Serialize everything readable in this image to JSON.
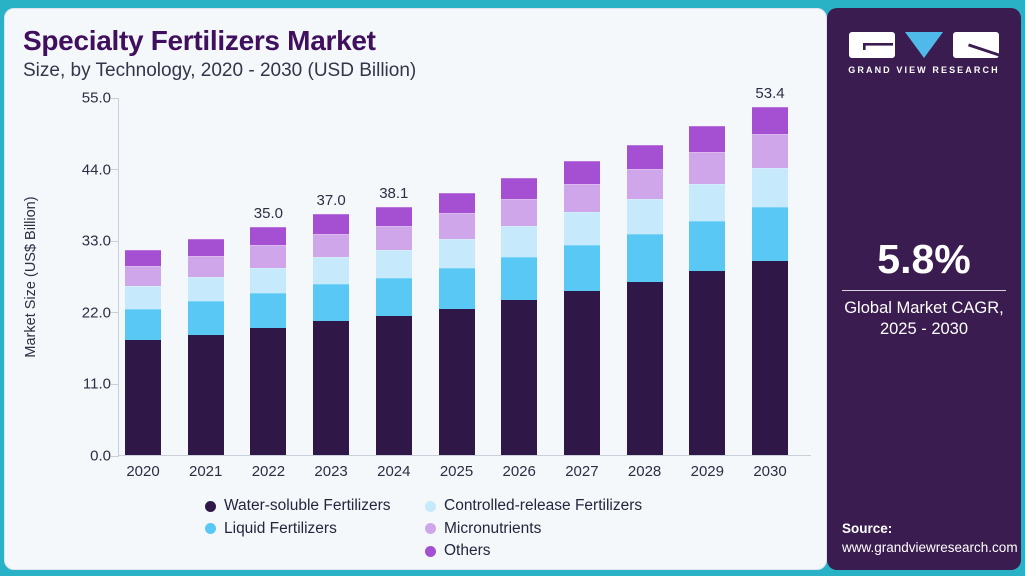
{
  "header": {
    "title": "Specialty Fertilizers Market",
    "subtitle": "Size, by Technology, 2020 - 2030 (USD Billion)"
  },
  "chart_data": {
    "type": "bar",
    "stacked": true,
    "title": "Specialty Fertilizers Market Size, by Technology, 2020 - 2030 (USD Billion)",
    "ylabel": "Market Size (US$ Billion)",
    "xlabel": "",
    "ylim": [
      0,
      55
    ],
    "ytick_labels": [
      "0.0",
      "11.0",
      "22.0",
      "33.0",
      "44.0",
      "55.0"
    ],
    "grid": "off",
    "legend_position": "bottom",
    "legend_columns": [
      [
        0,
        1
      ],
      [
        2,
        3,
        4
      ]
    ],
    "categories": [
      "2020",
      "2021",
      "2022",
      "2023",
      "2024",
      "2025",
      "2026",
      "2027",
      "2028",
      "2029",
      "2030"
    ],
    "totals": [
      31.5,
      33.2,
      35.0,
      37.0,
      38.1,
      40.3,
      42.6,
      45.1,
      47.7,
      50.5,
      53.4
    ],
    "bar_total_labels": [
      "",
      "",
      "35.0",
      "37.0",
      "38.1",
      "",
      "",
      "",
      "",
      "",
      "53.4"
    ],
    "series": [
      {
        "name": "Water-soluble Fertilizers",
        "color": "#2f1847",
        "values": [
          17.6,
          18.5,
          19.5,
          20.6,
          21.3,
          22.5,
          23.8,
          25.2,
          26.6,
          28.2,
          29.8
        ]
      },
      {
        "name": "Liquid Fertilizers",
        "color": "#5ac8f5",
        "values": [
          4.9,
          5.1,
          5.4,
          5.7,
          5.9,
          6.2,
          6.6,
          7.0,
          7.4,
          7.8,
          8.3
        ]
      },
      {
        "name": "Controlled-release Fertilizers",
        "color": "#c6e9fc",
        "values": [
          3.5,
          3.7,
          3.9,
          4.1,
          4.3,
          4.5,
          4.8,
          5.1,
          5.3,
          5.7,
          6.0
        ]
      },
      {
        "name": "Micronutrients",
        "color": "#d0a6ea",
        "values": [
          3.1,
          3.3,
          3.4,
          3.6,
          3.7,
          4.0,
          4.2,
          4.4,
          4.7,
          4.9,
          5.2
        ]
      },
      {
        "name": "Others",
        "color": "#a54fd2",
        "values": [
          2.4,
          2.6,
          2.8,
          3.0,
          2.9,
          3.1,
          3.2,
          3.4,
          3.7,
          3.9,
          4.1
        ]
      }
    ]
  },
  "sidebar": {
    "brand_name": "GRAND VIEW RESEARCH",
    "cagr_value": "5.8%",
    "cagr_label_line1": "Global Market CAGR,",
    "cagr_label_line2": "2025 - 2030",
    "source_label": "Source:",
    "source_url": "www.grandviewresearch.com"
  },
  "colors": {
    "accent_teal": "#29b2c6",
    "card_background": "#f4f8fb",
    "sidebar_purple": "#3b1c50",
    "title_purple": "#40105e",
    "axis_text": "#2c2e42",
    "logo_triangle_blue": "#4fb9e9"
  }
}
